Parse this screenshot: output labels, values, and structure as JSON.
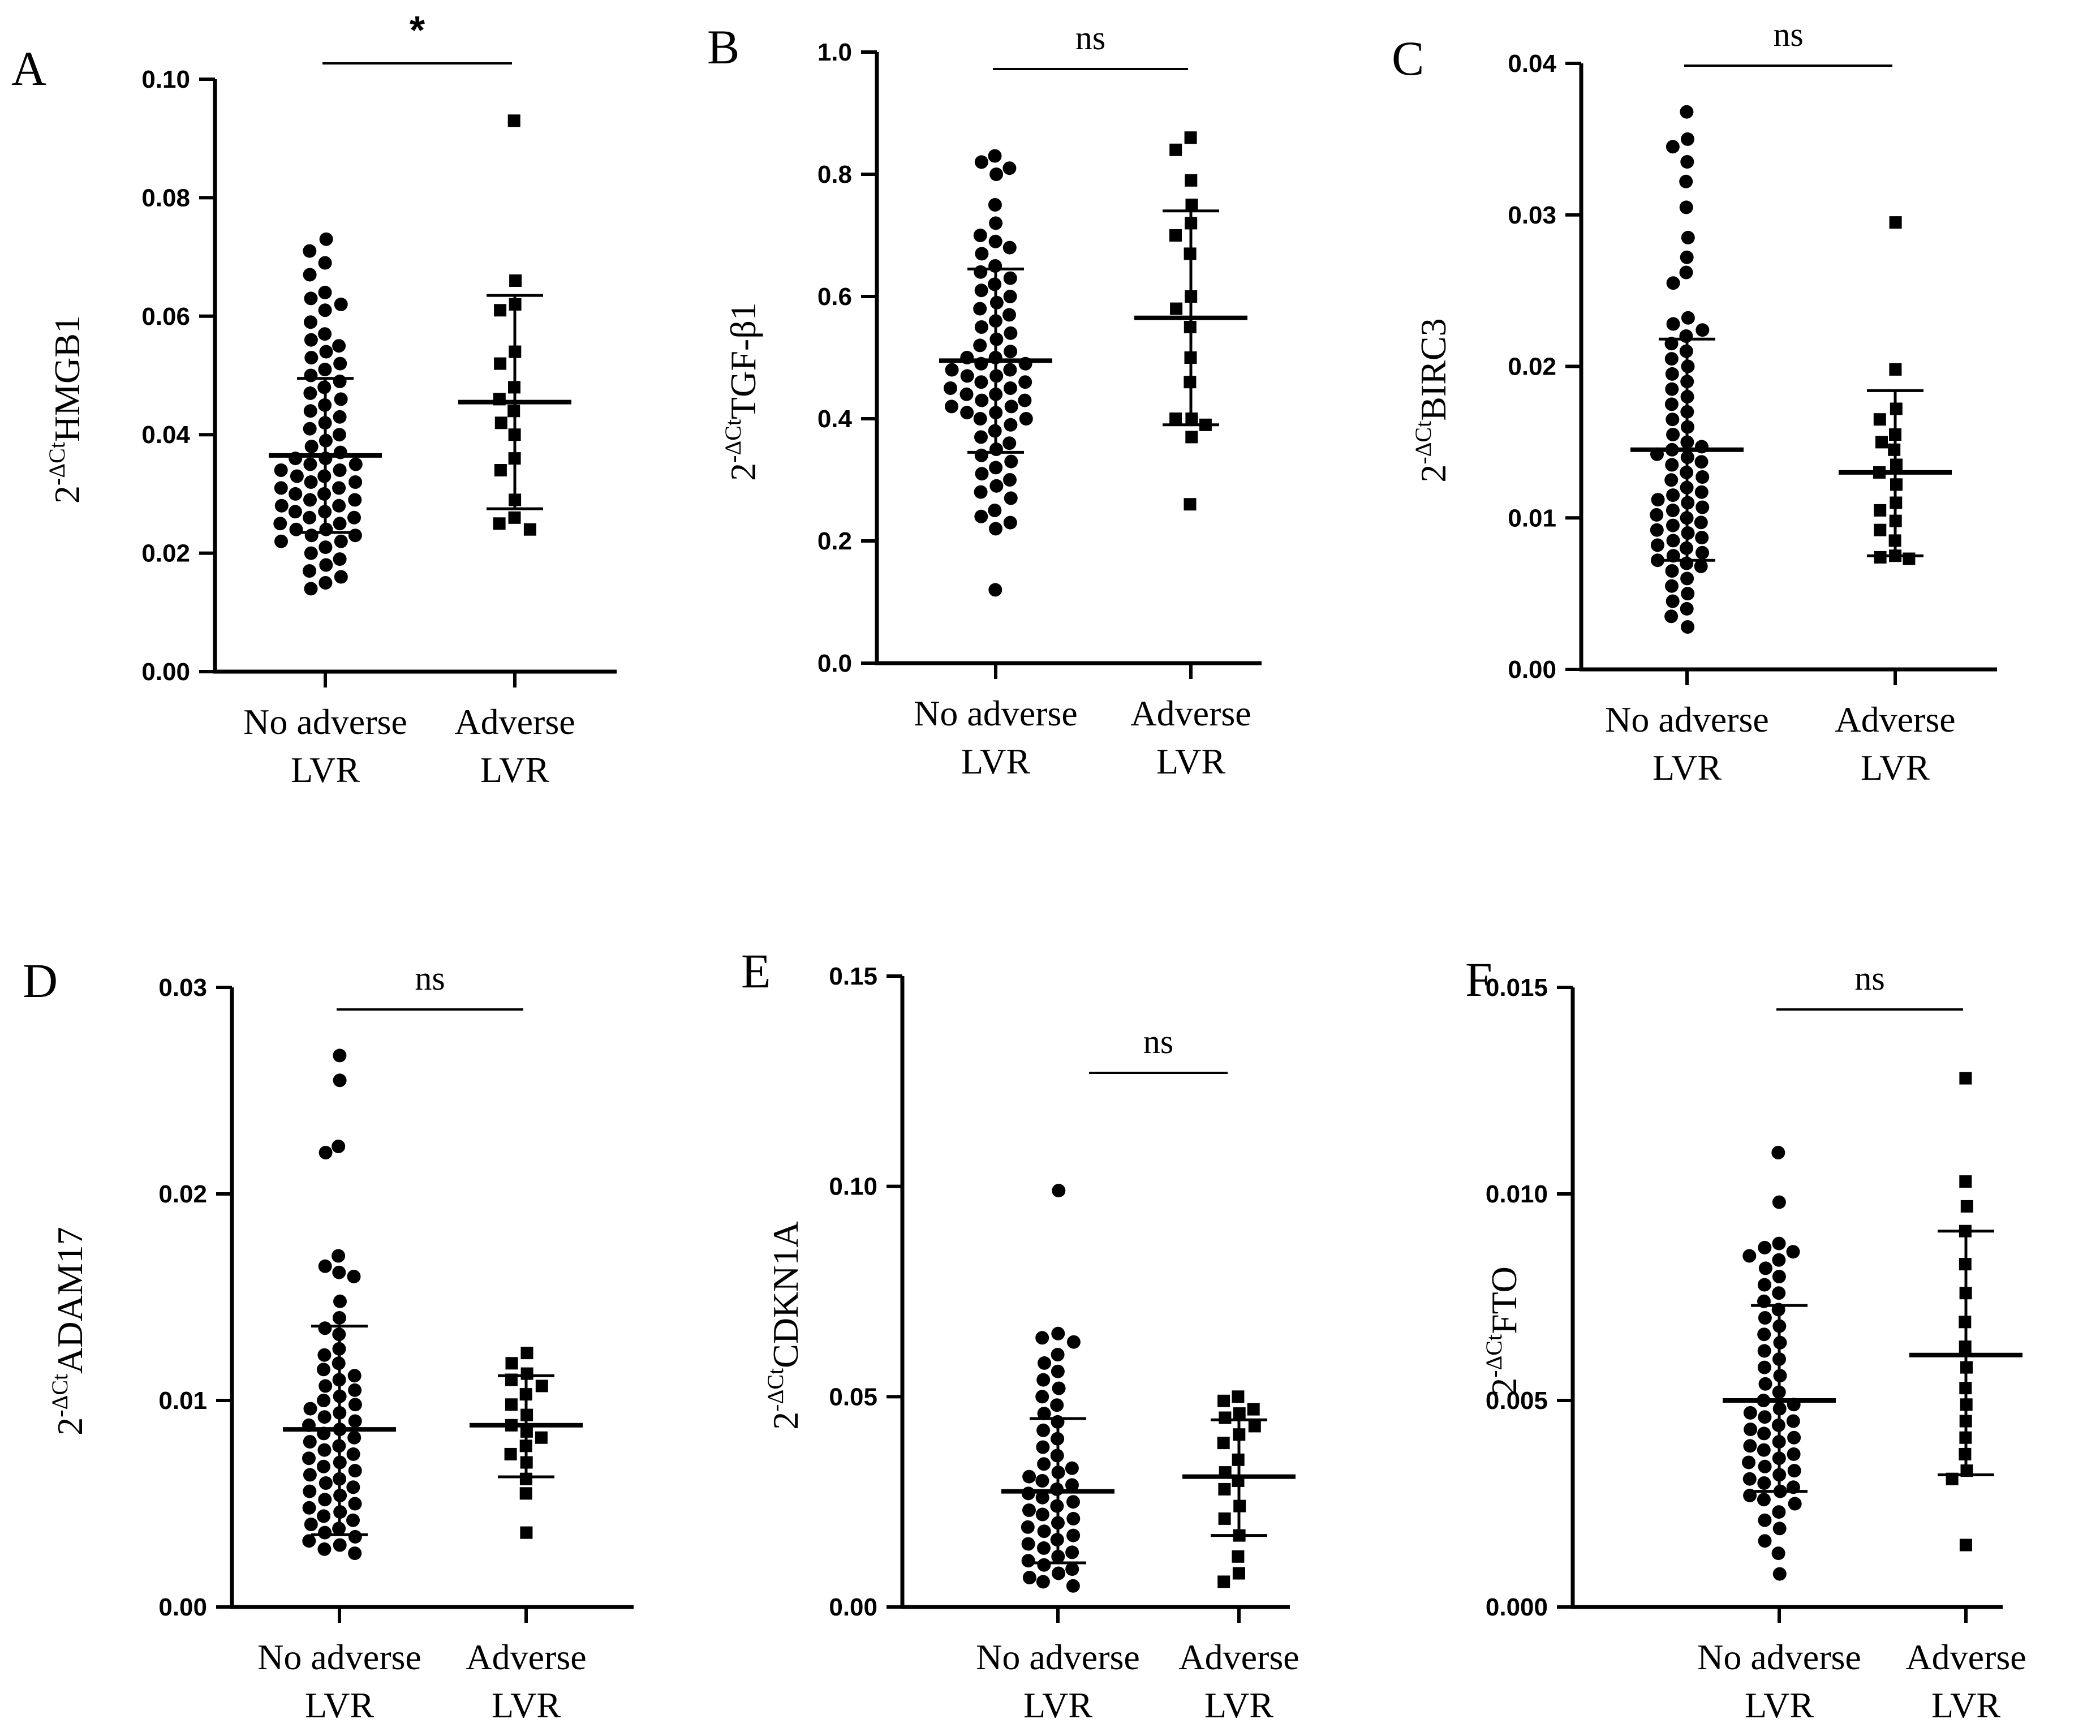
{
  "chart_data": [
    {
      "type": "scatter",
      "panel": "A",
      "ylabel_sup": "-ΔCt",
      "ylabel_gene": "HMGB1",
      "ylim": [
        0,
        0.1
      ],
      "yticks": [
        "0.00",
        "0.02",
        "0.04",
        "0.06",
        "0.08",
        "0.10"
      ],
      "categories": [
        {
          "line1": "No adverse",
          "line2": "LVR"
        },
        {
          "line1": "Adverse",
          "line2": "LVR"
        }
      ],
      "significance": "*",
      "groups": [
        {
          "marker": "circle",
          "mean": 0.0365,
          "sd_low": 0.0235,
          "sd_high": 0.0495,
          "values": [
            0.073,
            0.071,
            0.069,
            0.067,
            0.064,
            0.063,
            0.062,
            0.061,
            0.059,
            0.057,
            0.056,
            0.055,
            0.054,
            0.053,
            0.052,
            0.051,
            0.05,
            0.049,
            0.048,
            0.047,
            0.046,
            0.045,
            0.044,
            0.043,
            0.042,
            0.041,
            0.04,
            0.039,
            0.038,
            0.037,
            0.036,
            0.036,
            0.035,
            0.035,
            0.034,
            0.034,
            0.033,
            0.033,
            0.032,
            0.032,
            0.031,
            0.031,
            0.03,
            0.03,
            0.029,
            0.029,
            0.028,
            0.028,
            0.027,
            0.027,
            0.026,
            0.026,
            0.025,
            0.025,
            0.024,
            0.024,
            0.023,
            0.023,
            0.022,
            0.022,
            0.021,
            0.02,
            0.019,
            0.018,
            0.017,
            0.016,
            0.015,
            0.014
          ]
        },
        {
          "marker": "square",
          "mean": 0.0455,
          "sd_low": 0.0275,
          "sd_high": 0.0635,
          "values": [
            0.093,
            0.066,
            0.062,
            0.061,
            0.054,
            0.052,
            0.048,
            0.046,
            0.044,
            0.042,
            0.04,
            0.036,
            0.034,
            0.029,
            0.026,
            0.025,
            0.024
          ]
        }
      ]
    },
    {
      "type": "scatter",
      "panel": "B",
      "ylabel_sup": "-ΔCt",
      "ylabel_gene": "TGF-β1",
      "ylim": [
        0,
        1.0
      ],
      "yticks": [
        "0.0",
        "0.2",
        "0.4",
        "0.6",
        "0.8",
        "1.0"
      ],
      "categories": [
        {
          "line1": "No adverse",
          "line2": "LVR"
        },
        {
          "line1": "Adverse",
          "line2": "LVR"
        }
      ],
      "significance": "ns",
      "groups": [
        {
          "marker": "circle",
          "mean": 0.495,
          "sd_low": 0.345,
          "sd_high": 0.645,
          "values": [
            0.83,
            0.82,
            0.81,
            0.8,
            0.75,
            0.72,
            0.7,
            0.69,
            0.68,
            0.67,
            0.65,
            0.64,
            0.63,
            0.62,
            0.61,
            0.6,
            0.59,
            0.58,
            0.57,
            0.56,
            0.55,
            0.54,
            0.53,
            0.52,
            0.51,
            0.5,
            0.5,
            0.49,
            0.49,
            0.48,
            0.48,
            0.47,
            0.47,
            0.46,
            0.46,
            0.45,
            0.45,
            0.44,
            0.44,
            0.43,
            0.43,
            0.42,
            0.42,
            0.41,
            0.41,
            0.4,
            0.4,
            0.39,
            0.38,
            0.37,
            0.36,
            0.35,
            0.34,
            0.33,
            0.32,
            0.31,
            0.3,
            0.29,
            0.28,
            0.27,
            0.25,
            0.24,
            0.23,
            0.22,
            0.12
          ]
        },
        {
          "marker": "square",
          "mean": 0.565,
          "sd_low": 0.39,
          "sd_high": 0.74,
          "values": [
            0.86,
            0.84,
            0.79,
            0.75,
            0.72,
            0.7,
            0.67,
            0.6,
            0.58,
            0.55,
            0.5,
            0.46,
            0.4,
            0.4,
            0.39,
            0.37,
            0.26
          ]
        }
      ]
    },
    {
      "type": "scatter",
      "panel": "C",
      "ylabel_sup": "-ΔCt",
      "ylabel_gene": "BIRC3",
      "ylim": [
        0,
        0.04
      ],
      "yticks": [
        "0.00",
        "0.01",
        "0.02",
        "0.03",
        "0.04"
      ],
      "categories": [
        {
          "line1": "No adverse",
          "line2": "LVR"
        },
        {
          "line1": "Adverse",
          "line2": "LVR"
        }
      ],
      "significance": "ns",
      "groups": [
        {
          "marker": "circle",
          "mean": 0.0145,
          "sd_low": 0.0072,
          "sd_high": 0.0218,
          "values": [
            0.0368,
            0.035,
            0.0345,
            0.0335,
            0.0322,
            0.0305,
            0.0285,
            0.0272,
            0.0262,
            0.0255,
            0.0232,
            0.0228,
            0.0224,
            0.022,
            0.0215,
            0.021,
            0.0205,
            0.02,
            0.0195,
            0.019,
            0.0185,
            0.018,
            0.0175,
            0.017,
            0.0165,
            0.016,
            0.0155,
            0.015,
            0.0147,
            0.0145,
            0.0142,
            0.014,
            0.0137,
            0.0135,
            0.013,
            0.0127,
            0.0125,
            0.012,
            0.0117,
            0.0115,
            0.0112,
            0.011,
            0.0107,
            0.0105,
            0.0102,
            0.01,
            0.0097,
            0.0095,
            0.0092,
            0.009,
            0.0087,
            0.0085,
            0.0082,
            0.008,
            0.0077,
            0.0075,
            0.0072,
            0.007,
            0.0068,
            0.0065,
            0.006,
            0.0055,
            0.005,
            0.0045,
            0.004,
            0.0035,
            0.0028
          ]
        },
        {
          "marker": "square",
          "mean": 0.013,
          "sd_low": 0.0075,
          "sd_high": 0.0184,
          "values": [
            0.0295,
            0.0198,
            0.0172,
            0.0165,
            0.0155,
            0.015,
            0.0145,
            0.0135,
            0.013,
            0.0122,
            0.011,
            0.0105,
            0.0098,
            0.0092,
            0.0085,
            0.0075,
            0.0074,
            0.0073
          ]
        }
      ]
    },
    {
      "type": "scatter",
      "panel": "D",
      "ylabel_sup": "-ΔCt",
      "ylabel_gene": "ADAM17",
      "ylim": [
        0,
        0.03
      ],
      "yticks": [
        "0.00",
        "0.01",
        "0.02",
        "0.03"
      ],
      "categories": [
        {
          "line1": "No adverse",
          "line2": "LVR"
        },
        {
          "line1": "Adverse",
          "line2": "LVR"
        }
      ],
      "significance": "ns",
      "groups": [
        {
          "marker": "circle",
          "mean": 0.0086,
          "sd_low": 0.0035,
          "sd_high": 0.0136,
          "values": [
            0.0267,
            0.0255,
            0.0223,
            0.022,
            0.017,
            0.0165,
            0.0162,
            0.016,
            0.0148,
            0.014,
            0.0135,
            0.0132,
            0.0125,
            0.0122,
            0.0118,
            0.0115,
            0.0112,
            0.011,
            0.0107,
            0.0105,
            0.0102,
            0.01,
            0.0098,
            0.0096,
            0.0094,
            0.0092,
            0.009,
            0.0088,
            0.0086,
            0.0084,
            0.0082,
            0.008,
            0.0078,
            0.0076,
            0.0074,
            0.0072,
            0.007,
            0.0068,
            0.0066,
            0.0064,
            0.0062,
            0.006,
            0.0058,
            0.0056,
            0.0054,
            0.0052,
            0.005,
            0.0048,
            0.0046,
            0.0044,
            0.0042,
            0.004,
            0.0038,
            0.0036,
            0.0034,
            0.0032,
            0.003,
            0.0028,
            0.0026
          ]
        },
        {
          "marker": "square",
          "mean": 0.0088,
          "sd_low": 0.0063,
          "sd_high": 0.0112,
          "values": [
            0.0123,
            0.0118,
            0.0113,
            0.011,
            0.0107,
            0.0103,
            0.0098,
            0.0093,
            0.0088,
            0.0085,
            0.0082,
            0.0078,
            0.0074,
            0.007,
            0.0062,
            0.0055,
            0.0036
          ]
        }
      ]
    },
    {
      "type": "scatter",
      "panel": "E",
      "ylabel_sup": "-ΔCt",
      "ylabel_gene": "CDKN1A",
      "ylim": [
        0,
        0.15
      ],
      "yticks": [
        "0.00",
        "0.05",
        "0.10",
        "0.15"
      ],
      "categories": [
        {
          "line1": "No adverse",
          "line2": "LVR"
        },
        {
          "line1": "Adverse",
          "line2": "LVR"
        }
      ],
      "significance": "ns",
      "groups": [
        {
          "marker": "circle",
          "mean": 0.0275,
          "sd_low": 0.0105,
          "sd_high": 0.0448,
          "values": [
            0.099,
            0.065,
            0.064,
            0.063,
            0.06,
            0.058,
            0.056,
            0.054,
            0.052,
            0.05,
            0.048,
            0.046,
            0.044,
            0.042,
            0.04,
            0.038,
            0.036,
            0.034,
            0.033,
            0.032,
            0.031,
            0.03,
            0.029,
            0.028,
            0.027,
            0.026,
            0.025,
            0.024,
            0.023,
            0.022,
            0.021,
            0.02,
            0.019,
            0.018,
            0.017,
            0.016,
            0.015,
            0.014,
            0.013,
            0.012,
            0.011,
            0.01,
            0.009,
            0.008,
            0.007,
            0.006,
            0.005
          ]
        },
        {
          "marker": "square",
          "mean": 0.031,
          "sd_low": 0.017,
          "sd_high": 0.0445,
          "values": [
            0.05,
            0.049,
            0.047,
            0.046,
            0.045,
            0.043,
            0.041,
            0.039,
            0.035,
            0.032,
            0.03,
            0.028,
            0.024,
            0.021,
            0.017,
            0.012,
            0.008,
            0.006
          ]
        }
      ]
    },
    {
      "type": "scatter",
      "panel": "F",
      "ylabel_sup": "-ΔCt",
      "ylabel_gene": "FTO",
      "ylim": [
        0,
        0.015
      ],
      "yticks": [
        "0.000",
        "0.005",
        "0.010",
        "0.015"
      ],
      "categories": [
        {
          "line1": "No adverse",
          "line2": "LVR"
        },
        {
          "line1": "Adverse",
          "line2": "LVR"
        }
      ],
      "significance": "ns",
      "groups": [
        {
          "marker": "circle",
          "mean": 0.005,
          "sd_low": 0.0028,
          "sd_high": 0.0073,
          "values": [
            0.011,
            0.0098,
            0.0088,
            0.0087,
            0.0086,
            0.0085,
            0.0084,
            0.0082,
            0.008,
            0.0078,
            0.0076,
            0.0074,
            0.0072,
            0.007,
            0.0068,
            0.0066,
            0.0064,
            0.0062,
            0.006,
            0.0058,
            0.0056,
            0.0054,
            0.0052,
            0.005,
            0.0049,
            0.0048,
            0.0047,
            0.0046,
            0.0045,
            0.0044,
            0.0043,
            0.0042,
            0.0041,
            0.004,
            0.0039,
            0.0038,
            0.0037,
            0.0036,
            0.0035,
            0.0034,
            0.0033,
            0.0032,
            0.0031,
            0.003,
            0.0029,
            0.0028,
            0.0027,
            0.0026,
            0.0025,
            0.0023,
            0.0021,
            0.0019,
            0.0016,
            0.0013,
            0.0008
          ]
        },
        {
          "marker": "square",
          "mean": 0.0061,
          "sd_low": 0.0032,
          "sd_high": 0.0091,
          "values": [
            0.0128,
            0.0103,
            0.0097,
            0.0091,
            0.0083,
            0.0076,
            0.0069,
            0.0063,
            0.0058,
            0.0053,
            0.0049,
            0.0045,
            0.0041,
            0.0037,
            0.0033,
            0.0031,
            0.0015
          ]
        }
      ]
    }
  ]
}
